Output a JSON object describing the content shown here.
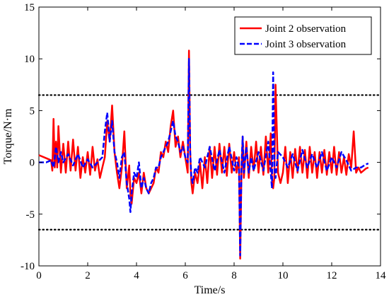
{
  "chart_data": {
    "type": "line",
    "title": "",
    "xlabel": "Time/s",
    "ylabel": "Torque/N·m",
    "xlim": [
      0,
      14
    ],
    "ylim": [
      -10,
      15
    ],
    "xticks": [
      0,
      2,
      4,
      6,
      8,
      10,
      12,
      14
    ],
    "yticks": [
      -10,
      -5,
      0,
      5,
      10,
      15
    ],
    "grid": false,
    "legend_position": "top-right",
    "thresholds": [
      6.5,
      -6.5
    ],
    "series": [
      {
        "name": "Joint 2 observation",
        "color": "#ff0000",
        "style": "solid",
        "x": [
          0.0,
          0.3,
          0.5,
          0.55,
          0.6,
          0.65,
          0.7,
          0.75,
          0.8,
          0.9,
          1.0,
          1.1,
          1.2,
          1.3,
          1.4,
          1.5,
          1.6,
          1.7,
          1.8,
          1.9,
          2.0,
          2.1,
          2.2,
          2.3,
          2.4,
          2.5,
          2.6,
          2.7,
          2.8,
          2.9,
          3.0,
          3.1,
          3.2,
          3.3,
          3.4,
          3.5,
          3.6,
          3.7,
          3.75,
          3.8,
          3.9,
          4.0,
          4.1,
          4.2,
          4.3,
          4.4,
          4.5,
          4.6,
          4.7,
          4.8,
          4.9,
          5.0,
          5.1,
          5.2,
          5.3,
          5.4,
          5.5,
          5.6,
          5.7,
          5.8,
          5.9,
          6.0,
          6.1,
          6.15,
          6.2,
          6.25,
          6.3,
          6.4,
          6.5,
          6.6,
          6.7,
          6.8,
          6.9,
          7.0,
          7.1,
          7.2,
          7.3,
          7.4,
          7.5,
          7.6,
          7.7,
          7.8,
          7.9,
          8.0,
          8.1,
          8.2,
          8.25,
          8.3,
          8.35,
          8.4,
          8.5,
          8.6,
          8.7,
          8.8,
          8.9,
          9.0,
          9.1,
          9.2,
          9.3,
          9.4,
          9.5,
          9.55,
          9.6,
          9.65,
          9.7,
          9.8,
          9.9,
          10.0,
          10.1,
          10.2,
          10.3,
          10.4,
          10.5,
          10.6,
          10.7,
          10.8,
          10.9,
          11.0,
          11.1,
          11.2,
          11.3,
          11.4,
          11.5,
          11.6,
          11.7,
          11.8,
          11.9,
          12.0,
          12.1,
          12.2,
          12.3,
          12.4,
          12.5,
          12.6,
          12.7,
          12.8,
          12.9,
          13.0,
          13.1,
          13.2,
          13.3,
          13.4,
          13.5
        ],
        "y": [
          0.7,
          0.4,
          0.2,
          -0.8,
          4.2,
          -0.5,
          2.0,
          -0.5,
          3.5,
          -1.0,
          1.8,
          -1.0,
          2.0,
          -0.8,
          2.2,
          -0.8,
          1.5,
          -1.5,
          0.5,
          -1.0,
          1.0,
          -1.2,
          1.5,
          -0.8,
          0.3,
          -1.5,
          -0.5,
          0.5,
          4.0,
          2.0,
          5.5,
          1.0,
          -1.0,
          -2.5,
          -0.5,
          3.0,
          -2.5,
          -0.3,
          -3.0,
          -4.0,
          -1.5,
          -2.0,
          -1.0,
          -3.0,
          -1.0,
          -2.5,
          -3.0,
          -2.5,
          -2.0,
          -0.5,
          -1.0,
          1.0,
          0.5,
          2.0,
          1.0,
          3.5,
          5.0,
          1.5,
          2.5,
          0.5,
          2.0,
          0.5,
          -1.0,
          10.8,
          1.0,
          -2.0,
          -3.0,
          -1.0,
          -2.0,
          0.0,
          -2.5,
          0.5,
          -2.0,
          1.5,
          -1.5,
          1.5,
          -1.2,
          1.8,
          -1.0,
          1.5,
          -1.3,
          1.8,
          -1.0,
          1.0,
          -1.0,
          0.5,
          -9.3,
          -1.0,
          2.5,
          -1.5,
          2.0,
          -1.5,
          1.5,
          -0.8,
          2.0,
          -1.0,
          1.5,
          -1.2,
          2.5,
          -1.0,
          2.8,
          -1.5,
          -2.5,
          -1.5,
          7.5,
          -1.0,
          -2.0,
          -1.0,
          1.5,
          -2.0,
          1.0,
          -1.5,
          1.3,
          -1.0,
          1.5,
          -1.0,
          1.2,
          -1.5,
          1.5,
          -1.0,
          1.0,
          -1.5,
          1.0,
          -1.0,
          1.2,
          -1.2,
          1.0,
          -1.0,
          1.5,
          -1.2,
          1.0,
          -1.0,
          0.5,
          -1.2,
          0.8,
          -0.5,
          3.0,
          -1.0,
          -0.5,
          -1.0,
          -0.8,
          -0.6,
          -0.5
        ],
        "legend_label_key": "legend_joint2"
      },
      {
        "name": "Joint 3 observation",
        "color": "#0000ff",
        "style": "dashed",
        "x": [
          0.0,
          0.3,
          0.5,
          0.6,
          0.7,
          0.8,
          0.9,
          1.0,
          1.2,
          1.4,
          1.6,
          1.8,
          2.0,
          2.2,
          2.4,
          2.6,
          2.7,
          2.8,
          2.9,
          3.0,
          3.1,
          3.2,
          3.3,
          3.4,
          3.5,
          3.6,
          3.7,
          3.75,
          3.8,
          3.9,
          4.0,
          4.1,
          4.2,
          4.3,
          4.4,
          4.5,
          4.6,
          4.7,
          4.8,
          4.9,
          5.0,
          5.1,
          5.2,
          5.3,
          5.4,
          5.5,
          5.6,
          5.7,
          5.8,
          5.9,
          6.0,
          6.1,
          6.15,
          6.2,
          6.25,
          6.3,
          6.4,
          6.5,
          6.6,
          6.8,
          7.0,
          7.2,
          7.4,
          7.6,
          7.8,
          8.0,
          8.1,
          8.2,
          8.25,
          8.3,
          8.35,
          8.4,
          8.5,
          8.6,
          8.7,
          8.8,
          9.0,
          9.2,
          9.4,
          9.5,
          9.55,
          9.6,
          9.65,
          9.7,
          9.8,
          10.0,
          10.2,
          10.4,
          10.6,
          10.8,
          11.0,
          11.2,
          11.4,
          11.6,
          11.8,
          12.0,
          12.2,
          12.4,
          12.6,
          12.8,
          13.0,
          13.2,
          13.4,
          13.5
        ],
        "y": [
          0.0,
          0.0,
          0.2,
          -0.5,
          1.5,
          0.0,
          1.0,
          0.0,
          0.8,
          -0.3,
          0.8,
          -0.5,
          0.3,
          -0.5,
          0.0,
          0.5,
          3.0,
          4.8,
          2.0,
          4.0,
          1.0,
          0.0,
          -1.5,
          0.5,
          1.0,
          -2.0,
          -3.5,
          -4.8,
          -3.0,
          -1.0,
          -1.5,
          0.0,
          -2.5,
          -1.5,
          -2.5,
          -3.0,
          -2.0,
          -1.5,
          -0.5,
          -0.5,
          0.5,
          1.0,
          1.5,
          2.0,
          3.0,
          4.0,
          2.5,
          2.0,
          1.0,
          1.5,
          0.5,
          0.0,
          10.0,
          1.0,
          -1.5,
          -2.0,
          -0.5,
          -1.0,
          0.5,
          -0.5,
          1.5,
          -0.8,
          1.2,
          -1.0,
          1.5,
          -0.8,
          0.5,
          -0.5,
          -9.0,
          -0.5,
          2.5,
          -1.0,
          1.5,
          -1.0,
          0.5,
          -0.8,
          1.0,
          -0.8,
          2.0,
          -1.0,
          -2.5,
          8.7,
          -0.5,
          -1.5,
          1.0,
          0.5,
          -0.5,
          0.8,
          -0.8,
          1.2,
          -0.5,
          0.8,
          -0.5,
          1.0,
          -0.8,
          0.5,
          -0.5,
          1.0,
          0.2,
          -0.8,
          -0.5,
          -0.5,
          -0.2,
          -0.1
        ],
        "legend_label_key": "legend_joint3"
      }
    ]
  },
  "legend_joint2": "Joint 2 observation",
  "legend_joint3": "Joint 3 observation"
}
